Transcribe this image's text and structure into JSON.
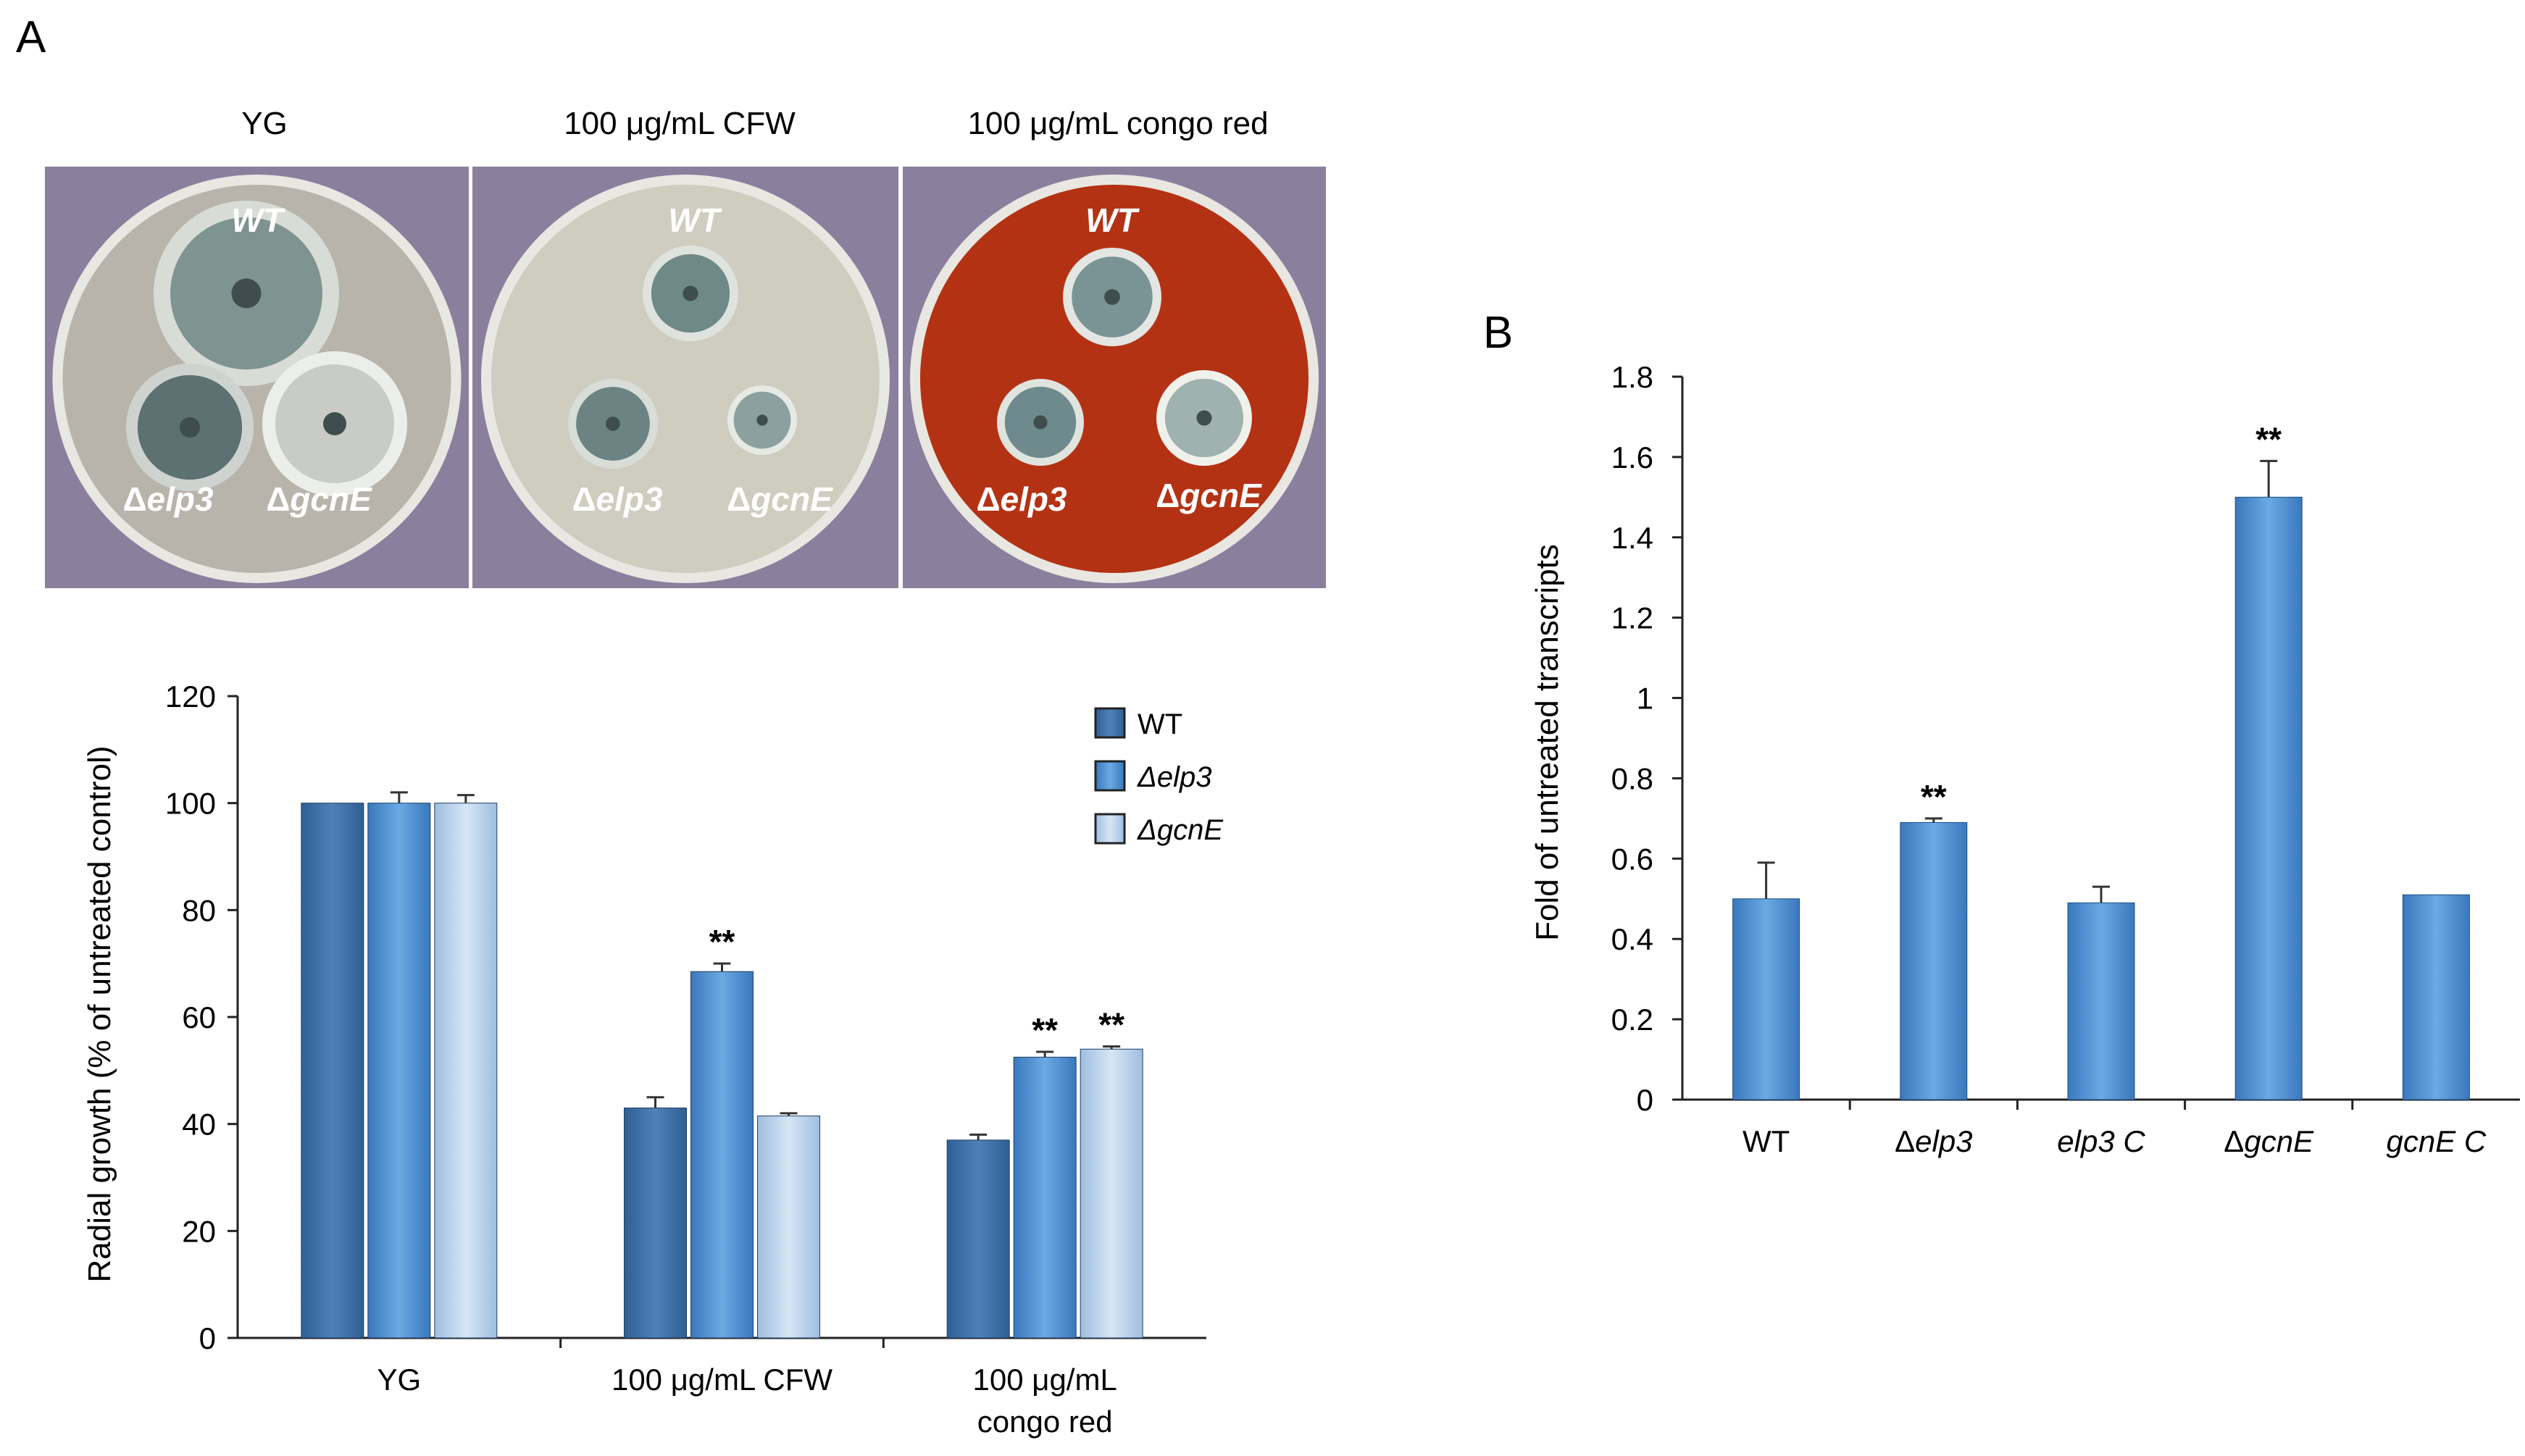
{
  "panels": {
    "a_label": "A",
    "b_label": "B"
  },
  "plates": [
    {
      "title": "YG",
      "background_color": "#b8b4ac",
      "colonies": [
        {
          "label": "WT",
          "color": "#7f9391",
          "edge_color": "#d8dcd6"
        },
        {
          "label": "Δelp3",
          "color": "#5d7072",
          "edge_color": "#cfd3cf"
        },
        {
          "label": "ΔgcnE",
          "color": "#c9ccc6",
          "edge_color": "#eceee9"
        }
      ]
    },
    {
      "title": "100 μg/mL CFW",
      "background_color": "#cfcdbf",
      "colonies": [
        {
          "label": "WT",
          "color": "#6f8888",
          "edge_color": "#dfe3de"
        },
        {
          "label": "Δelp3",
          "color": "#6c8384",
          "edge_color": "#d8ddd8"
        },
        {
          "label": "ΔgcnE",
          "color": "#8ca0a0",
          "edge_color": "#e6e9e4"
        }
      ]
    },
    {
      "title": "100 μg/mL congo red",
      "background_color": "#b43214",
      "colonies": [
        {
          "label": "WT",
          "color": "#7a9496",
          "edge_color": "#e3e6e2"
        },
        {
          "label": "Δelp3",
          "color": "#6e8a8c",
          "edge_color": "#e0e4df"
        },
        {
          "label": "ΔgcnE",
          "color": "#9fb2b0",
          "edge_color": "#f1f1ec"
        }
      ]
    }
  ],
  "colors": {
    "plate_backdrop": "#8b7f9e",
    "wt": "#4f81b8",
    "elp3": "#5b9bd5",
    "gcnE": "#bdd7ee",
    "bar_b": "#5b9bd5",
    "axis": "#222222"
  },
  "chart_data": [
    {
      "type": "bar",
      "title": "",
      "xlabel": "",
      "ylabel": "Radial growth (% of untreated control)",
      "ylim": [
        0,
        120
      ],
      "yticks": [
        0,
        20,
        40,
        60,
        80,
        100,
        120
      ],
      "categories": [
        {
          "line1": "YG",
          "line2": ""
        },
        {
          "line1": "100 μg/mL  CFW",
          "line2": ""
        },
        {
          "line1": "100 μg/mL",
          "line2": "congo red"
        }
      ],
      "legend_position": "top-right",
      "series": [
        {
          "name": "WT",
          "values": [
            100,
            43,
            37
          ],
          "errors": [
            0,
            2,
            1
          ],
          "significance": [
            "",
            "",
            ""
          ]
        },
        {
          "name": "Δelp3",
          "values": [
            100,
            68.5,
            52.5
          ],
          "errors": [
            2,
            1.5,
            1
          ],
          "significance": [
            "",
            "**",
            "**"
          ]
        },
        {
          "name": "ΔgcnE",
          "values": [
            100,
            41.5,
            54
          ],
          "errors": [
            1.5,
            0.5,
            0.5
          ],
          "significance": [
            "",
            "",
            "**"
          ]
        }
      ]
    },
    {
      "type": "bar",
      "title": "",
      "xlabel": "",
      "ylabel": "Fold of untreated transcripts",
      "ylim": [
        0,
        1.8
      ],
      "yticks": [
        0,
        0.2,
        0.4,
        0.6,
        0.8,
        1,
        1.2,
        1.4,
        1.6,
        1.8
      ],
      "ytick_labels": [
        "0",
        "0.2",
        "0.4",
        "0.6",
        "0.8",
        "1",
        "1.2",
        "1.4",
        "1.6",
        "1.8"
      ],
      "categories": [
        "WT",
        "Δelp3",
        "elp3 C",
        "ΔgcnE",
        "gcnE C"
      ],
      "values": [
        0.5,
        0.69,
        0.49,
        1.5,
        0.51
      ],
      "errors": [
        0.09,
        0.01,
        0.04,
        0.09,
        0
      ],
      "significance": [
        "",
        "**",
        "",
        "**",
        ""
      ]
    }
  ]
}
